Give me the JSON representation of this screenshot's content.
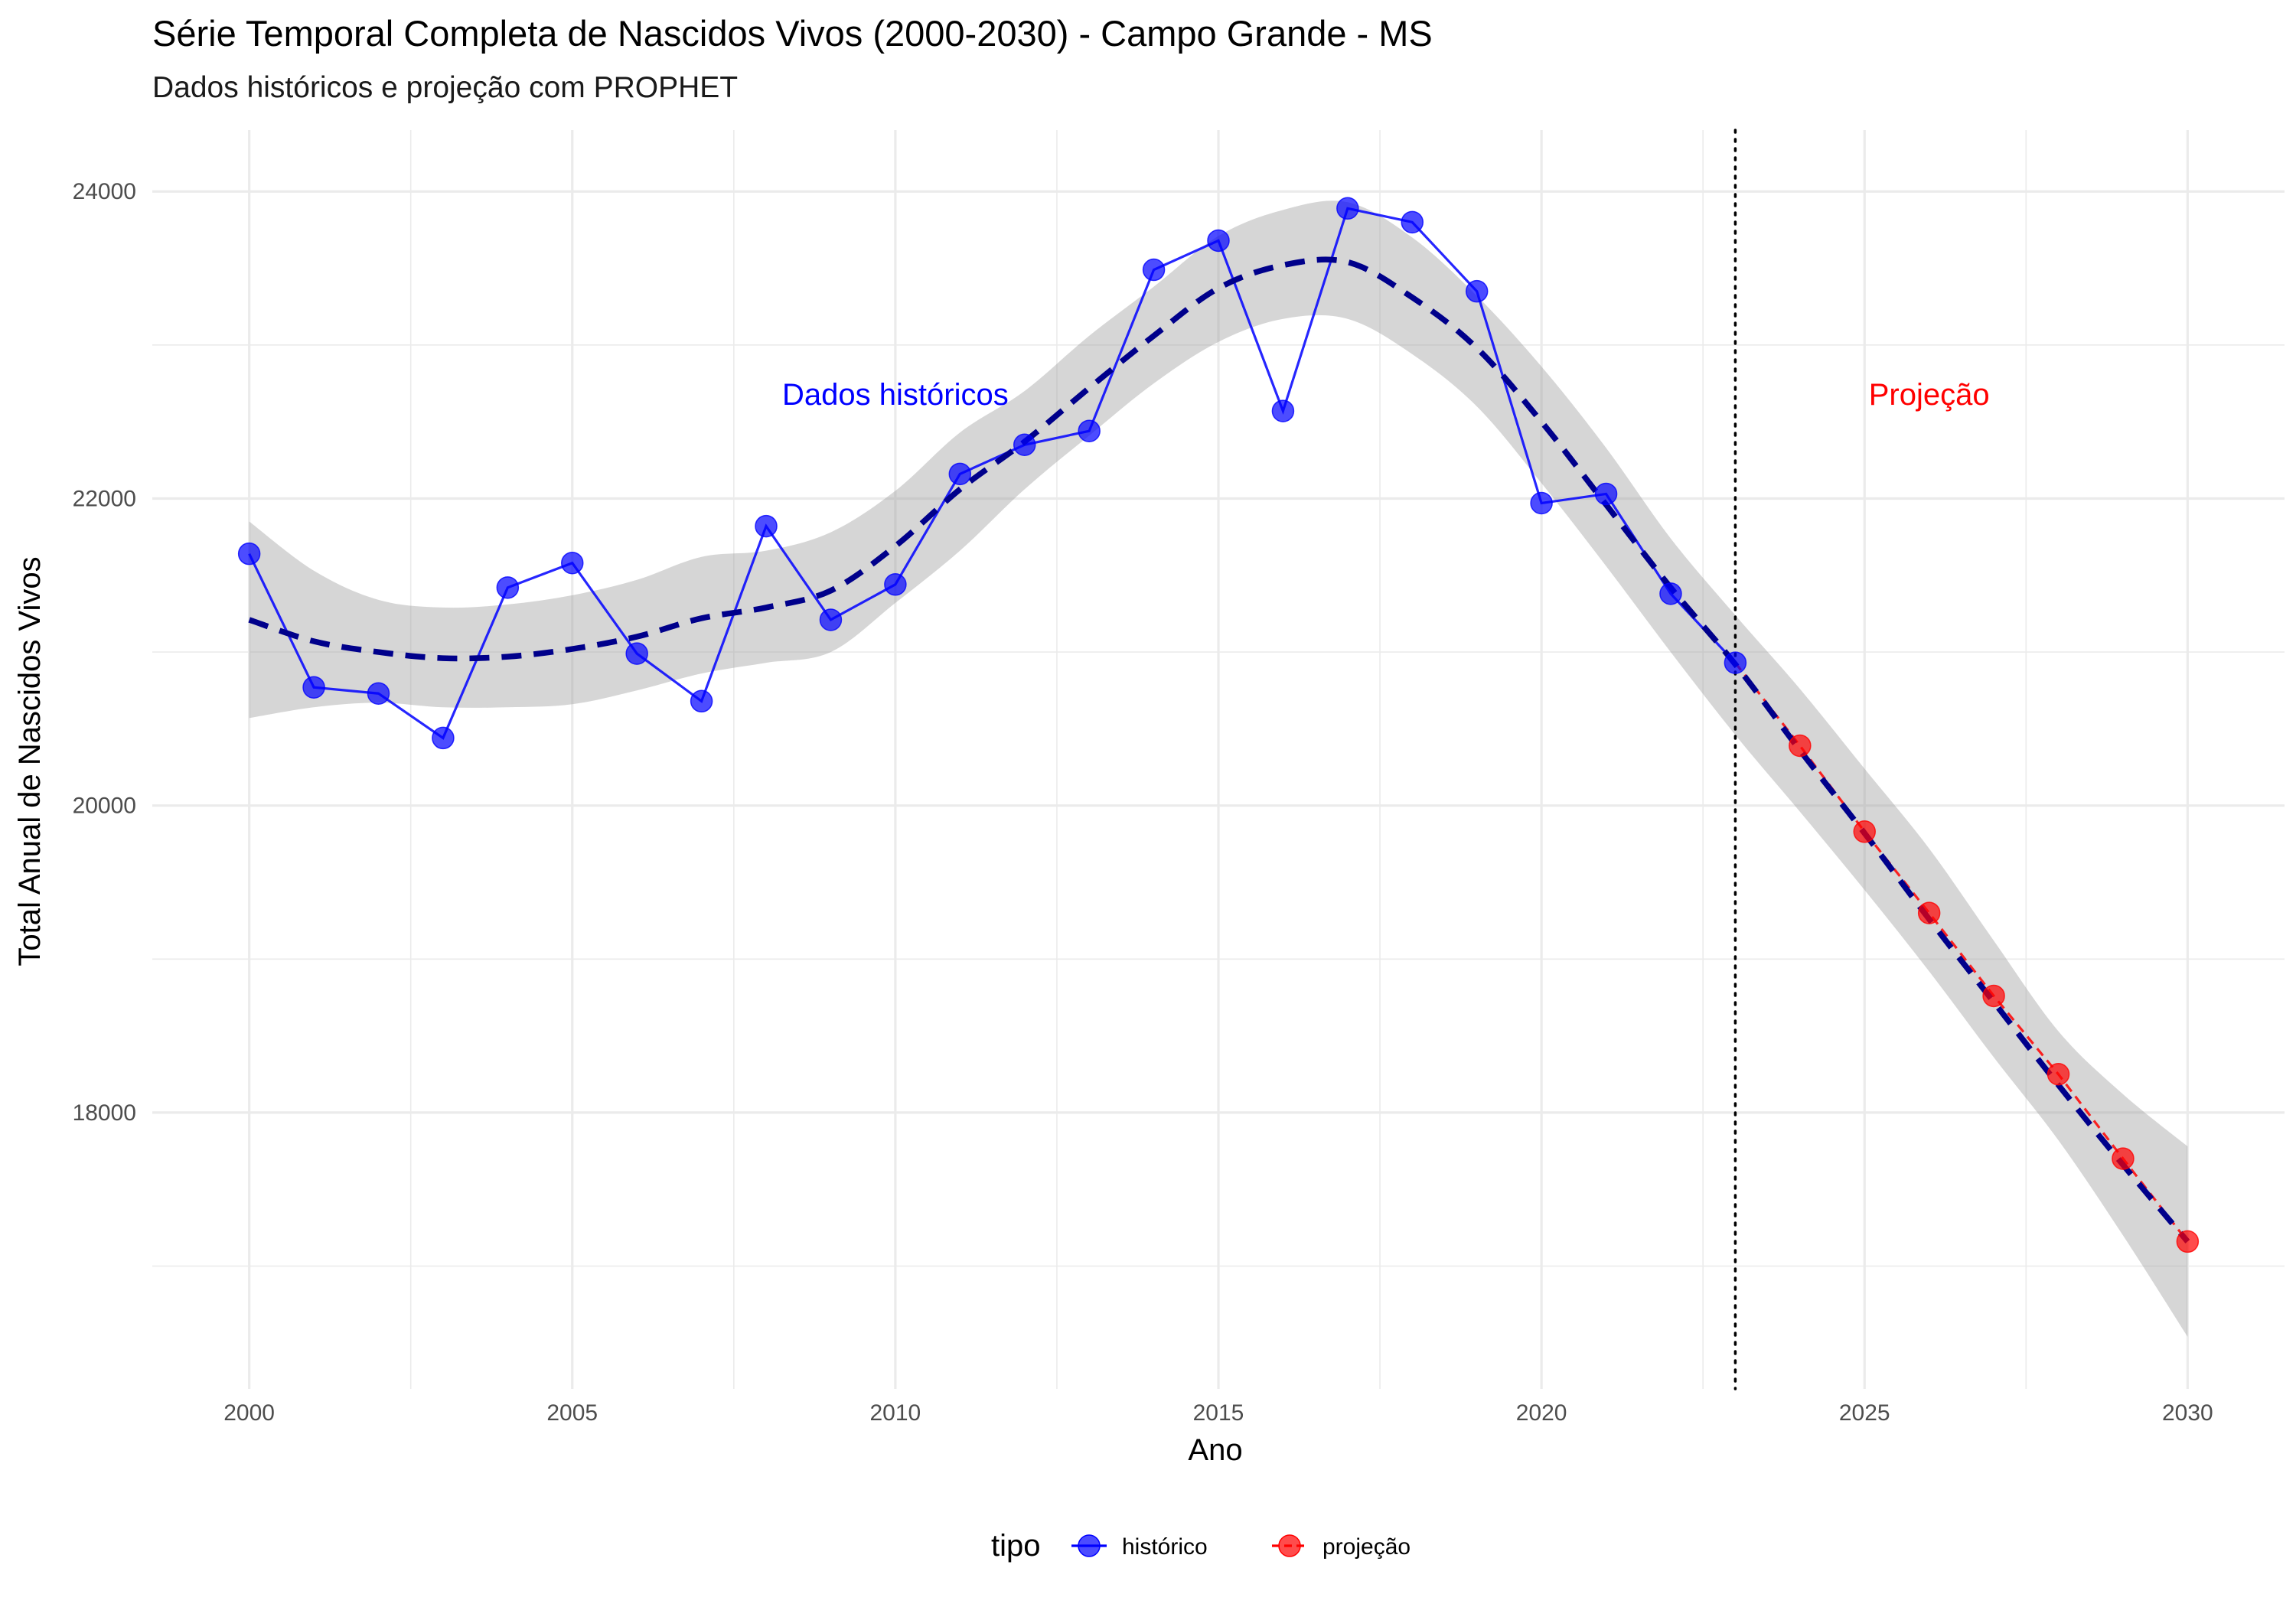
{
  "chart_data": {
    "type": "line",
    "title": "Série Temporal Completa de Nascidos Vivos (2000-2030) -  Campo Grande - MS",
    "subtitle": "Dados históricos e projeção com PROPHET",
    "xlabel": "Ano",
    "ylabel": "Total Anual de Nascidos Vivos",
    "xlim": [
      1998.5,
      2031.5
    ],
    "ylim": [
      16200,
      24400
    ],
    "x_ticks": [
      2000,
      2005,
      2010,
      2015,
      2020,
      2025,
      2030
    ],
    "x_tick_labels": [
      "2000",
      "2005",
      "2010",
      "2015",
      "2020",
      "2025",
      "2030"
    ],
    "y_ticks": [
      18000,
      20000,
      22000,
      24000
    ],
    "y_tick_labels": [
      "18000",
      "20000",
      "22000",
      "24000"
    ],
    "grid": true,
    "legend": {
      "title": "tipo",
      "position": "bottom",
      "entries": [
        "histórico",
        "projeção"
      ]
    },
    "series": [
      {
        "name": "histórico",
        "color": "#0000ff",
        "x": [
          2000,
          2001,
          2002,
          2003,
          2004,
          2005,
          2006,
          2007,
          2008,
          2009,
          2010,
          2011,
          2012,
          2013,
          2014,
          2015,
          2016,
          2017,
          2018,
          2019,
          2020,
          2021,
          2022,
          2023
        ],
        "y": [
          21640,
          20770,
          20730,
          20440,
          21420,
          21580,
          20990,
          20680,
          21820,
          21210,
          21440,
          22160,
          22350,
          22440,
          23490,
          23680,
          22570,
          23890,
          23800,
          23350,
          21970,
          22030,
          21380,
          20930
        ]
      },
      {
        "name": "projeção",
        "color": "#ff0000",
        "x": [
          2023,
          2024,
          2025,
          2026,
          2027,
          2028,
          2029,
          2030
        ],
        "y": [
          20930,
          20390,
          19830,
          19300,
          18760,
          18250,
          17700,
          17160
        ]
      }
    ],
    "trend": {
      "color": "#00008b",
      "x": [
        2000,
        2001,
        2002,
        2003,
        2004,
        2005,
        2006,
        2007,
        2008,
        2009,
        2010,
        2011,
        2012,
        2013,
        2014,
        2015,
        2016,
        2017,
        2018,
        2019,
        2020,
        2021,
        2022,
        2023,
        2024,
        2025,
        2026,
        2027,
        2028,
        2029,
        2030
      ],
      "y": [
        21210,
        21070,
        21000,
        20960,
        20970,
        21020,
        21100,
        21220,
        21290,
        21400,
        21690,
        22060,
        22370,
        22720,
        23060,
        23370,
        23520,
        23540,
        23310,
        22980,
        22500,
        21960,
        21420,
        20920,
        20360,
        19820,
        19260,
        18720,
        18180,
        17660,
        17160
      ],
      "lower": [
        20570,
        20640,
        20670,
        20640,
        20640,
        20660,
        20750,
        20860,
        20930,
        21000,
        21320,
        21660,
        22060,
        22410,
        22750,
        23020,
        23170,
        23170,
        22940,
        22600,
        22100,
        21560,
        21000,
        20460,
        19960,
        19450,
        18920,
        18360,
        17820,
        17200,
        16540
      ],
      "upper": [
        21850,
        21530,
        21340,
        21290,
        21310,
        21370,
        21470,
        21620,
        21660,
        21780,
        22050,
        22430,
        22700,
        23060,
        23380,
        23710,
        23880,
        23930,
        23700,
        23320,
        22860,
        22330,
        21740,
        21240,
        20760,
        20240,
        19720,
        19120,
        18530,
        18120,
        17780
      ]
    },
    "vline_x": 2023,
    "annotations": [
      {
        "text": "Dados históricos",
        "x": 2010,
        "y": 22680,
        "color": "#0000ff"
      },
      {
        "text": "Projeção",
        "x": 2026,
        "y": 22680,
        "color": "#ff0000"
      }
    ]
  }
}
